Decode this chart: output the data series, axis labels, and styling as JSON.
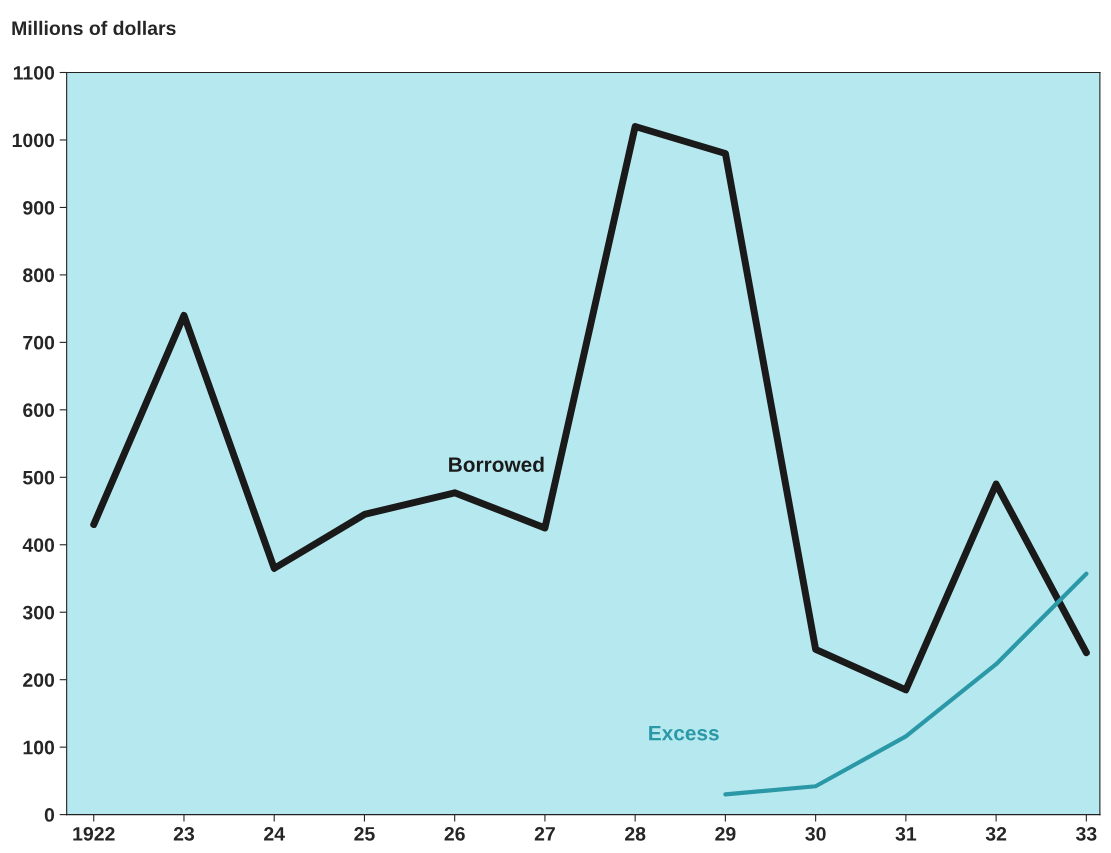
{
  "chart_data": {
    "type": "line",
    "ylabel": "Millions of dollars",
    "categories": [
      "1922",
      "23",
      "24",
      "25",
      "26",
      "27",
      "28",
      "29",
      "30",
      "31",
      "32",
      "33"
    ],
    "series": [
      {
        "name": "Borrowed",
        "color": "#1a1a1a",
        "values": [
          430,
          740,
          365,
          445,
          477,
          425,
          1020,
          980,
          245,
          185,
          490,
          240
        ]
      },
      {
        "name": "Excess",
        "color": "#2a98a6",
        "values": [
          null,
          null,
          null,
          null,
          null,
          null,
          null,
          30,
          42,
          116,
          223,
          357
        ]
      }
    ],
    "ylim": [
      0,
      1100
    ],
    "yticks": [
      0,
      100,
      200,
      300,
      400,
      500,
      600,
      700,
      800,
      900,
      1000,
      1100
    ],
    "grid": false,
    "legend": false,
    "marker": "none",
    "line_style": "solid"
  }
}
